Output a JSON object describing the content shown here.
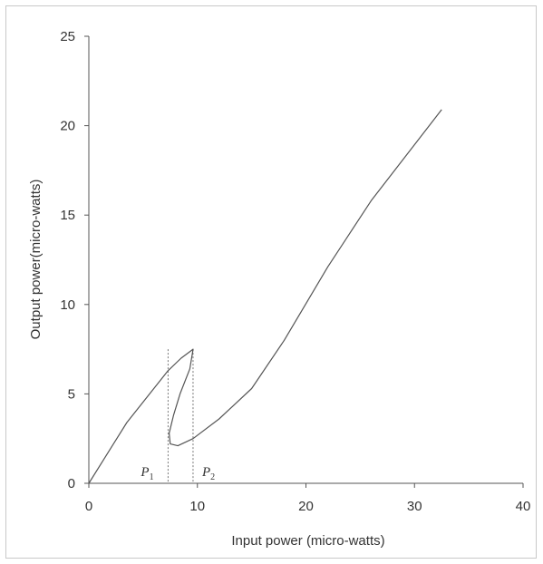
{
  "chart_data": {
    "type": "line",
    "title": "",
    "xlabel": "Input power (micro-watts)",
    "ylabel": "Output power(micro-watts)",
    "xlim": [
      0,
      40
    ],
    "ylim": [
      0,
      25
    ],
    "xticks": [
      0,
      10,
      20,
      30,
      40
    ],
    "yticks": [
      0,
      5,
      10,
      15,
      20,
      25
    ],
    "grid": false,
    "legend": "none",
    "line_color": "#555555",
    "series": [
      {
        "values": [
          {
            "x": 0,
            "y": 0
          },
          {
            "x": 3.5,
            "y": 3.4
          },
          {
            "x": 7.3,
            "y": 6.3
          },
          {
            "x": 8.5,
            "y": 7.0
          },
          {
            "x": 9.6,
            "y": 7.5
          },
          {
            "x": 9.3,
            "y": 6.4
          },
          {
            "x": 8.4,
            "y": 5.0
          },
          {
            "x": 7.8,
            "y": 3.8
          },
          {
            "x": 7.4,
            "y": 2.8
          },
          {
            "x": 7.5,
            "y": 2.2
          },
          {
            "x": 8.2,
            "y": 2.1
          },
          {
            "x": 9.6,
            "y": 2.5
          },
          {
            "x": 12,
            "y": 3.6
          },
          {
            "x": 15,
            "y": 5.3
          },
          {
            "x": 18,
            "y": 8.0
          },
          {
            "x": 22,
            "y": 12.1
          },
          {
            "x": 26,
            "y": 15.8
          },
          {
            "x": 32.5,
            "y": 20.9
          }
        ]
      }
    ],
    "annotations": [
      {
        "label": "P",
        "subscript": "1",
        "x": 7.3
      },
      {
        "label": "P",
        "subscript": "2",
        "x": 9.6
      }
    ]
  }
}
